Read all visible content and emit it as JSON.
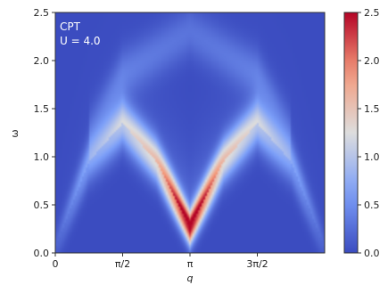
{
  "chart_data": {
    "type": "heatmap",
    "title": "",
    "xlabel": "q",
    "ylabel": "ω",
    "xlim": [
      0,
      6.2832
    ],
    "ylim": [
      0,
      2.5
    ],
    "x_ticks": [
      {
        "value": 0,
        "label": "0"
      },
      {
        "value": 1.5708,
        "label": "π/2"
      },
      {
        "value": 3.1416,
        "label": "π"
      },
      {
        "value": 4.7124,
        "label": "3π/2"
      }
    ],
    "y_ticks": [
      {
        "value": 0.0,
        "label": "0.0"
      },
      {
        "value": 0.5,
        "label": "0.5"
      },
      {
        "value": 1.0,
        "label": "1.0"
      },
      {
        "value": 1.5,
        "label": "1.5"
      },
      {
        "value": 2.0,
        "label": "2.0"
      },
      {
        "value": 2.5,
        "label": "2.5"
      }
    ],
    "colorbar": {
      "colormap": "coolwarm",
      "range": [
        0,
        2.5
      ],
      "ticks": [
        {
          "value": 0.0,
          "label": "0.0"
        },
        {
          "value": 0.5,
          "label": "0.5"
        },
        {
          "value": 1.0,
          "label": "1.0"
        },
        {
          "value": 1.5,
          "label": "1.5"
        },
        {
          "value": 2.0,
          "label": "2.0"
        },
        {
          "value": 2.5,
          "label": "2.5"
        }
      ]
    },
    "annotations": [
      "CPT",
      "U = 4.0"
    ],
    "features": {
      "main_band": {
        "description_units": "peak energy ω vs momentum q",
        "points": [
          {
            "q": 0.0,
            "omega": 0.05,
            "intensity": 0.15
          },
          {
            "q": 0.7854,
            "omega": 0.95,
            "intensity": 0.6
          },
          {
            "q": 1.5708,
            "omega": 1.35,
            "intensity": 1.0
          },
          {
            "q": 2.3562,
            "omega": 0.95,
            "intensity": 1.3
          },
          {
            "q": 3.1416,
            "omega": 0.25,
            "intensity": 2.5
          },
          {
            "q": 3.927,
            "omega": 0.95,
            "intensity": 1.3
          },
          {
            "q": 4.7124,
            "omega": 1.35,
            "intensity": 1.0
          },
          {
            "q": 5.4978,
            "omega": 0.95,
            "intensity": 0.6
          },
          {
            "q": 6.2832,
            "omega": 0.05,
            "intensity": 0.15
          }
        ]
      },
      "upper_continuum": {
        "description_units": "faint arc, peak energy ω vs q",
        "points": [
          {
            "q": 0.7854,
            "omega": 1.2,
            "intensity": 0.25
          },
          {
            "q": 1.5708,
            "omega": 1.85,
            "intensity": 0.35
          },
          {
            "q": 3.1416,
            "omega": 2.3,
            "intensity": 0.3
          },
          {
            "q": 4.7124,
            "omega": 1.85,
            "intensity": 0.35
          },
          {
            "q": 5.4978,
            "omega": 1.2,
            "intensity": 0.25
          }
        ]
      }
    }
  }
}
